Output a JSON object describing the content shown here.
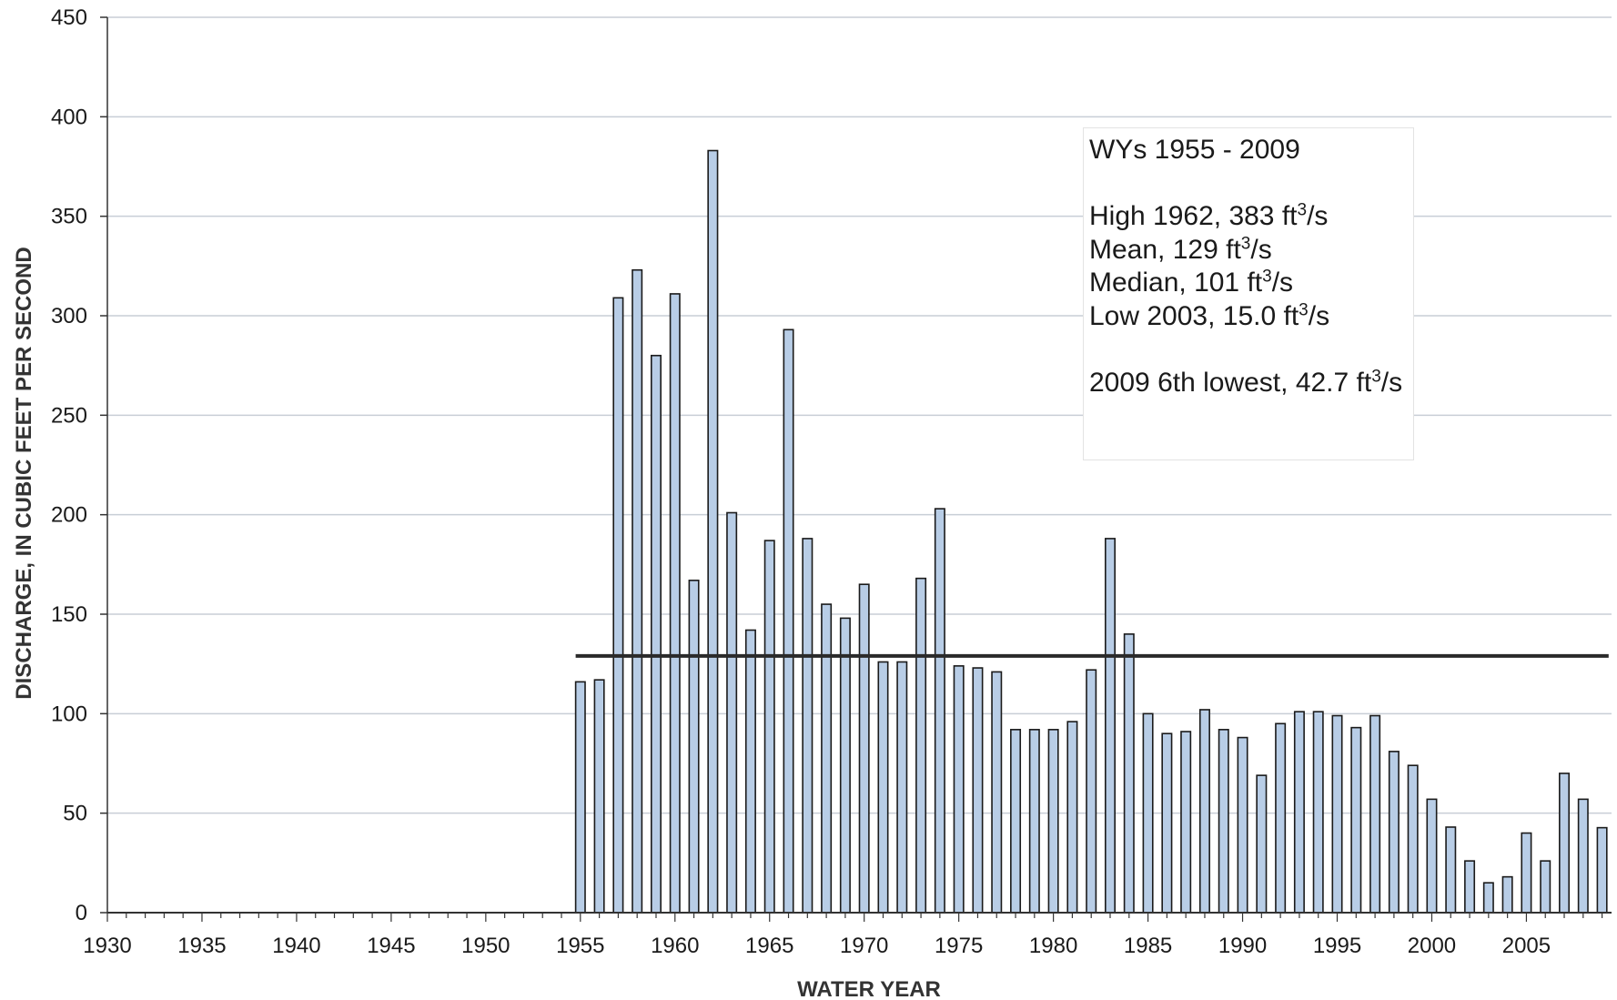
{
  "chart_data": {
    "type": "bar",
    "title": "",
    "xlabel": "WATER YEAR",
    "ylabel": "DISCHARGE, IN CUBIC FEET PER SECOND",
    "xlim": [
      1930,
      2009.5
    ],
    "ylim": [
      0,
      450
    ],
    "x_ticks": [
      1930,
      1935,
      1940,
      1945,
      1950,
      1955,
      1960,
      1965,
      1970,
      1975,
      1980,
      1985,
      1990,
      1995,
      2000,
      2005
    ],
    "y_ticks": [
      0,
      50,
      100,
      150,
      200,
      250,
      300,
      350,
      400,
      450
    ],
    "grid": "horizontal",
    "bar_color": "#b8cde6",
    "bar_edge_color": "#1a1a1a",
    "mean_line": {
      "value": 129,
      "from_year": 1955,
      "to_year": 2009,
      "color": "#2a2a2a"
    },
    "categories": [
      1955,
      1956,
      1957,
      1958,
      1959,
      1960,
      1961,
      1962,
      1963,
      1964,
      1965,
      1966,
      1967,
      1968,
      1969,
      1970,
      1971,
      1972,
      1973,
      1974,
      1975,
      1976,
      1977,
      1978,
      1979,
      1980,
      1981,
      1982,
      1983,
      1984,
      1985,
      1986,
      1987,
      1988,
      1989,
      1990,
      1991,
      1992,
      1993,
      1994,
      1995,
      1996,
      1997,
      1998,
      1999,
      2000,
      2001,
      2002,
      2003,
      2004,
      2005,
      2006,
      2007,
      2008,
      2009
    ],
    "values": [
      116,
      117,
      309,
      323,
      280,
      311,
      167,
      383,
      201,
      142,
      187,
      293,
      188,
      155,
      148,
      165,
      126,
      126,
      168,
      203,
      124,
      123,
      121,
      92,
      92,
      92,
      96,
      122,
      188,
      140,
      100,
      90,
      91,
      102,
      92,
      88,
      69,
      95,
      101,
      101,
      99,
      93,
      99,
      81,
      74,
      57,
      43,
      26,
      15.0,
      18,
      40,
      26,
      70,
      57,
      42.7
    ],
    "annotations": {
      "period": "WYs 1955 - 2009",
      "high": {
        "prefix": "High 1962, 383 ft",
        "sup": "3",
        "suffix": "/s"
      },
      "mean": {
        "prefix": "Mean, 129 ft",
        "sup": "3",
        "suffix": "/s"
      },
      "median": {
        "prefix": "Median, 101 ft",
        "sup": "3",
        "suffix": "/s"
      },
      "low": {
        "prefix": "Low 2003, 15.0 ft",
        "sup": "3",
        "suffix": "/s"
      },
      "note": {
        "prefix": "2009 6th lowest, 42.7 ft",
        "sup": "3",
        "suffix": "/s"
      }
    }
  }
}
